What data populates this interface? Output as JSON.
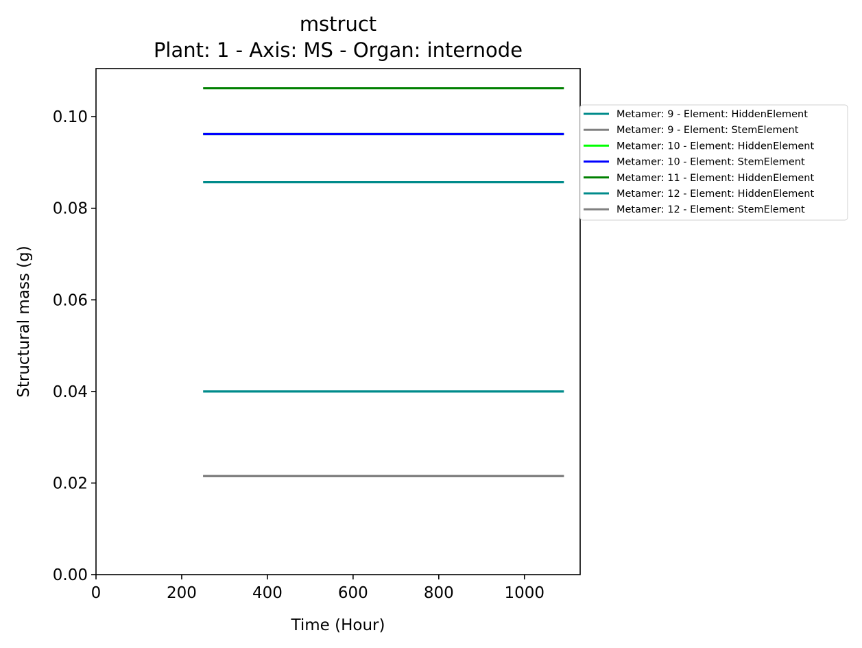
{
  "chart_data": {
    "type": "line",
    "title": "mstruct",
    "subtitle": "Plant: 1 - Axis: MS - Organ: internode",
    "xlabel": "Time (Hour)",
    "ylabel": "Structural mass (g)",
    "xlim": [
      0,
      1130
    ],
    "ylim": [
      0,
      0.1105
    ],
    "xticks": [
      0,
      200,
      400,
      600,
      800,
      1000
    ],
    "xtick_labels": [
      "0",
      "200",
      "400",
      "600",
      "800",
      "1000"
    ],
    "yticks": [
      0,
      0.02,
      0.04,
      0.06,
      0.08,
      0.1
    ],
    "ytick_labels": [
      "0.00",
      "0.02",
      "0.04",
      "0.06",
      "0.08",
      "0.10"
    ],
    "grid": false,
    "legend_position": "outside-right",
    "series": [
      {
        "name": "Metamer: 9 - Element: HiddenElement",
        "color": "#008B8B",
        "x": [
          250,
          1092
        ],
        "y": [
          0.0857,
          0.0857
        ]
      },
      {
        "name": "Metamer: 9 - Element: StemElement",
        "color": "#808080",
        "x": [
          250,
          1092
        ],
        "y": [
          0.0215,
          0.0215
        ]
      },
      {
        "name": "Metamer: 10 - Element: HiddenElement",
        "color": "#00FF00",
        "x": [
          250,
          1092
        ],
        "y": [
          0.0962,
          0.0962
        ]
      },
      {
        "name": "Metamer: 10 - Element: StemElement",
        "color": "#0000FF",
        "x": [
          250,
          1092
        ],
        "y": [
          0.0962,
          0.0962
        ]
      },
      {
        "name": "Metamer: 11 - Element: HiddenElement",
        "color": "#008000",
        "x": [
          250,
          1092
        ],
        "y": [
          0.1062,
          0.1062
        ]
      },
      {
        "name": "Metamer: 12 - Element: HiddenElement",
        "color": "#008B8B",
        "x": [
          250,
          1092
        ],
        "y": [
          0.04,
          0.04
        ]
      },
      {
        "name": "Metamer: 12 - Element: StemElement",
        "color": "#808080",
        "x": [
          250,
          1092
        ],
        "y": [
          0.0215,
          0.0215
        ]
      }
    ]
  }
}
